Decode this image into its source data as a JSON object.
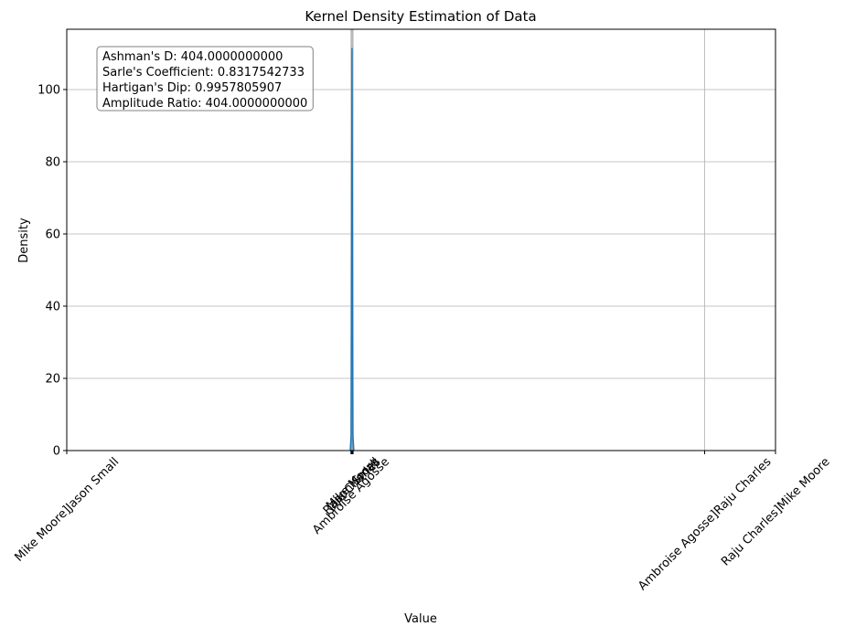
{
  "chart_data": {
    "type": "area",
    "title": "Kernel Density Estimation of Data",
    "x_label": "Value",
    "y_label": "Density",
    "x": [
      4.0,
      4.012,
      4.02,
      4.025,
      4.03,
      4.038,
      4.05
    ],
    "series": [
      {
        "name": "Density",
        "color": "#1f77b4",
        "values": [
          0,
          4,
          60,
          111.5,
          60,
          4,
          0
        ]
      }
    ],
    "xlim": [
      0,
      10
    ],
    "ylim": [
      0,
      116.7
    ],
    "xticks": [
      {
        "value": 0,
        "label": "Mike Moore]Jason Small"
      },
      {
        "value": 4.01,
        "label": "Ambroise Agosse"
      },
      {
        "value": 4.02,
        "label": "Raju Charles"
      },
      {
        "value": 4.03,
        "label": "Mike Moore"
      },
      {
        "value": 4.04,
        "label": "Jason Small"
      },
      {
        "value": 9.0,
        "label": "Ambroise Agosse]Raju Charles"
      },
      {
        "value": 10,
        "label": "Raju Charles]Mike Moore"
      }
    ],
    "yticks": [
      0,
      20,
      40,
      60,
      80,
      100
    ],
    "grid": true,
    "annotations": [
      "Ashman's D: 404.0000000000",
      "Sarle's Coefficient: 0.8317542733",
      "Hartigan's Dip: 0.9957805907",
      "Amplitude Ratio: 404.0000000000"
    ]
  }
}
